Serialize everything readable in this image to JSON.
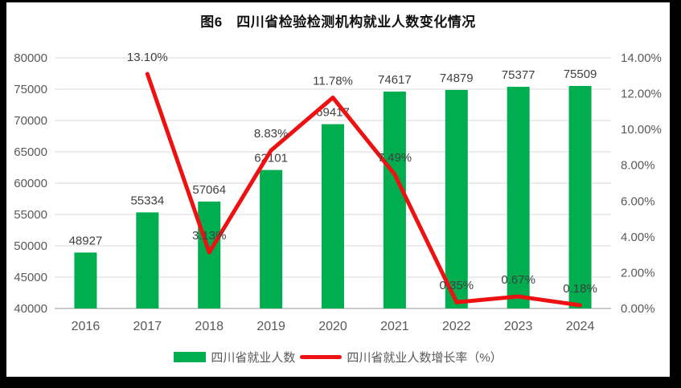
{
  "header": {
    "title": "图6　四川省检验检测机构就业人数变化情况"
  },
  "colors": {
    "bar": "#00AE50",
    "line": "#ED1111",
    "gridline": "#D9D9D9",
    "axis_line": "#C9C9C9",
    "tick_text": "#595959",
    "data_label_text": "#404040",
    "frame": "#000000",
    "background": "#FFFFFF"
  },
  "chart_data": {
    "type": "bar",
    "subtype": "combo-bar-line",
    "title": "图6　四川省检验检测机构就业人数变化情况",
    "categories": [
      "2016",
      "2017",
      "2018",
      "2019",
      "2020",
      "2021",
      "2022",
      "2023",
      "2024"
    ],
    "series": [
      {
        "name": "四川省就业人数",
        "type": "bar",
        "axis": "left",
        "color": "#00AE50",
        "values": [
          48927,
          55334,
          57064,
          62101,
          69417,
          74617,
          74879,
          75377,
          75509
        ],
        "data_labels": [
          "48927",
          "55334",
          "57064",
          "62101",
          "69417",
          "74617",
          "74879",
          "75377",
          "75509"
        ]
      },
      {
        "name": "四川省就业人数增长率（%）",
        "type": "line",
        "axis": "right",
        "color": "#ED1111",
        "values": [
          null,
          13.1,
          3.13,
          8.83,
          11.78,
          7.49,
          0.35,
          0.67,
          0.18
        ],
        "data_labels": [
          null,
          "13.10%",
          "3.13%",
          "8.83%",
          "11.78%",
          "7.49%",
          "0.35%",
          "0.67%",
          "0.18%"
        ]
      }
    ],
    "left_axis": {
      "min": 40000,
      "max": 80000,
      "step": 5000,
      "tick_labels": [
        "40000",
        "45000",
        "50000",
        "55000",
        "60000",
        "65000",
        "70000",
        "75000",
        "80000"
      ]
    },
    "right_axis": {
      "min": 0,
      "max": 14,
      "step": 2,
      "tick_labels": [
        "0.00%",
        "2.00%",
        "4.00%",
        "6.00%",
        "8.00%",
        "10.00%",
        "12.00%",
        "14.00%"
      ]
    },
    "grid": true,
    "legend_position": "bottom"
  },
  "legend": {
    "items": [
      {
        "label": "四川省就业人数",
        "swatch": "bar",
        "color": "#00AE50"
      },
      {
        "label": "四川省就业人数增长率（%）",
        "swatch": "line",
        "color": "#ED1111"
      }
    ]
  }
}
